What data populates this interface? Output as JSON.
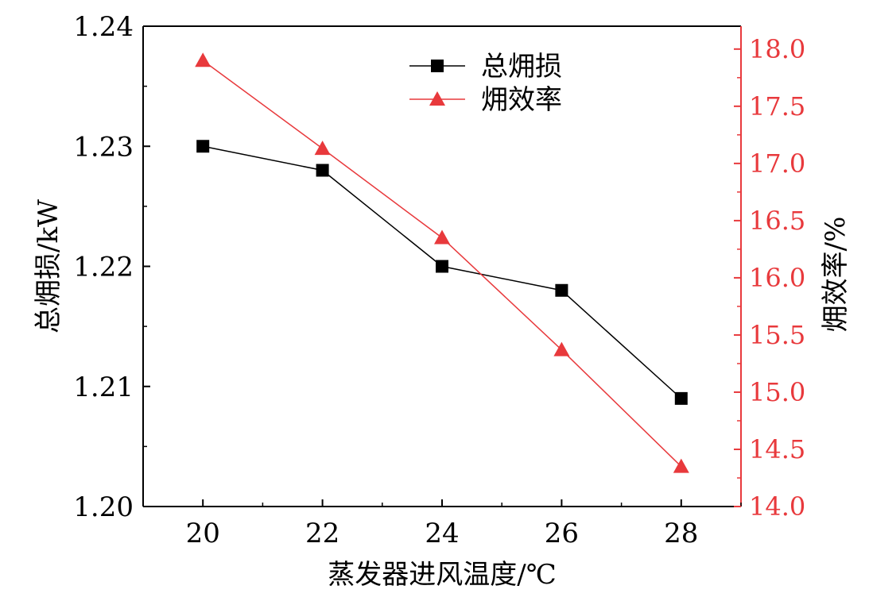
{
  "chart_data": {
    "type": "line",
    "title": "",
    "xlabel": "蒸发器进风温度/℃",
    "ylabel": "总㶲损/kW",
    "y2label": "㶲效率/%",
    "x": [
      20,
      22,
      24,
      26,
      28
    ],
    "xlim": [
      19,
      29
    ],
    "ylim": [
      1.2,
      1.24
    ],
    "y2lim": [
      14.0,
      18.2
    ],
    "x_ticks": [
      "20",
      "22",
      "24",
      "26",
      "28"
    ],
    "y_ticks": [
      "1.20",
      "1.21",
      "1.22",
      "1.23",
      "1.24"
    ],
    "y2_ticks": [
      "14.0",
      "14.5",
      "15.0",
      "15.5",
      "16.0",
      "16.5",
      "17.0",
      "17.5",
      "18.0"
    ],
    "grid": false,
    "legend_position": "top-center",
    "series": [
      {
        "name": "总㶲损",
        "axis": "left",
        "marker": "square",
        "color": "#000000",
        "values": [
          1.23,
          1.228,
          1.22,
          1.218,
          1.209
        ]
      },
      {
        "name": "㶲效率",
        "axis": "right",
        "marker": "triangle",
        "color": "#e8393c",
        "values": [
          17.9,
          17.13,
          16.35,
          15.37,
          14.35
        ]
      }
    ],
    "right_axis_color": "#e8393c"
  }
}
